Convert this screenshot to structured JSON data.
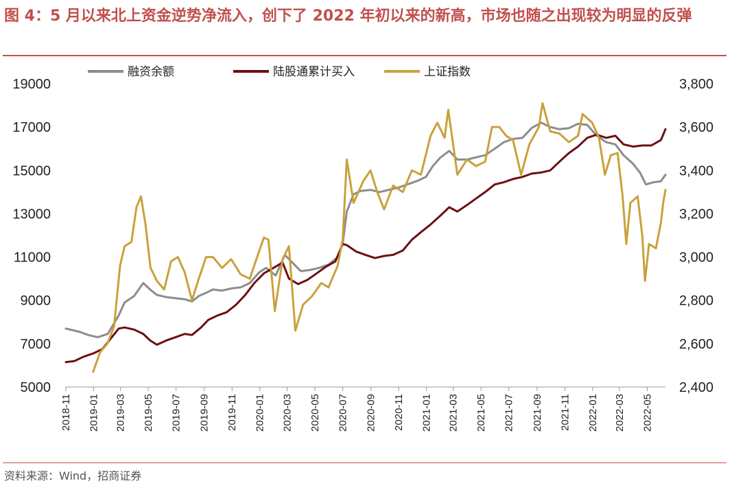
{
  "figure": {
    "title": "图 4：5 月以来北上资金逆势净流入，创下了 2022 年初以来的新高，市场也随之出现较为明显的反弹",
    "source": "资料来源：Wind，招商证券"
  },
  "colors": {
    "margin_financing": "#8c8c8c",
    "northbound": "#6b0f12",
    "sse_index": "#c9a13b",
    "accent": "#c0504d"
  },
  "chart_data": {
    "type": "line",
    "title": "图 4：5 月以来北上资金逆势净流入，创下了 2022 年初以来的新高，市场也随之出现较为明显的反弹",
    "legend_position": "top",
    "grid": false,
    "x_tick_labels": [
      "2018-11",
      "2019-01",
      "2019-03",
      "2019-05",
      "2019-07",
      "2019-09",
      "2019-11",
      "2020-01",
      "2020-03",
      "2020-05",
      "2020-07",
      "2020-09",
      "2020-11",
      "2021-01",
      "2021-03",
      "2021-05",
      "2021-07",
      "2021-09",
      "2021-11",
      "2022-01",
      "2022-03",
      "2022-05"
    ],
    "xlim": [
      "2018-11-01",
      "2022-06-10"
    ],
    "y_left": {
      "ylim": [
        5000,
        19000
      ],
      "ticks": [
        "5000",
        "7000",
        "9000",
        "11000",
        "13000",
        "15000",
        "17000",
        "19000"
      ]
    },
    "y_right": {
      "ylim": [
        2400,
        3800
      ],
      "ticks": [
        "2,400",
        "2,600",
        "2,800",
        "3,000",
        "3,200",
        "3,400",
        "3,600",
        "3,800"
      ]
    },
    "series": [
      {
        "name": "融资余额",
        "axis": "left",
        "color": "#8c8c8c",
        "points": [
          [
            "2018-11-01",
            7700
          ],
          [
            "2018-12-01",
            7550
          ],
          [
            "2018-12-20",
            7400
          ],
          [
            "2019-01-10",
            7300
          ],
          [
            "2019-02-01",
            7450
          ],
          [
            "2019-02-25",
            8300
          ],
          [
            "2019-03-10",
            8900
          ],
          [
            "2019-03-31",
            9200
          ],
          [
            "2019-04-20",
            9800
          ],
          [
            "2019-05-05",
            9500
          ],
          [
            "2019-05-20",
            9250
          ],
          [
            "2019-06-10",
            9150
          ],
          [
            "2019-06-30",
            9100
          ],
          [
            "2019-07-20",
            9050
          ],
          [
            "2019-08-05",
            8950
          ],
          [
            "2019-08-20",
            9200
          ],
          [
            "2019-09-05",
            9350
          ],
          [
            "2019-09-20",
            9500
          ],
          [
            "2019-10-10",
            9450
          ],
          [
            "2019-10-30",
            9550
          ],
          [
            "2019-11-20",
            9600
          ],
          [
            "2019-12-10",
            9800
          ],
          [
            "2019-12-31",
            10300
          ],
          [
            "2020-01-15",
            10500
          ],
          [
            "2020-02-05",
            10150
          ],
          [
            "2020-02-25",
            11100
          ],
          [
            "2020-03-10",
            10800
          ],
          [
            "2020-03-31",
            10350
          ],
          [
            "2020-04-20",
            10400
          ],
          [
            "2020-05-10",
            10500
          ],
          [
            "2020-05-31",
            10650
          ],
          [
            "2020-06-20",
            11000
          ],
          [
            "2020-07-01",
            11600
          ],
          [
            "2020-07-10",
            13100
          ],
          [
            "2020-07-25",
            13900
          ],
          [
            "2020-08-10",
            14050
          ],
          [
            "2020-08-31",
            14100
          ],
          [
            "2020-09-20",
            14000
          ],
          [
            "2020-10-10",
            14100
          ],
          [
            "2020-10-31",
            14200
          ],
          [
            "2020-11-20",
            14350
          ],
          [
            "2020-12-10",
            14500
          ],
          [
            "2020-12-31",
            14700
          ],
          [
            "2021-01-15",
            15200
          ],
          [
            "2021-02-01",
            15600
          ],
          [
            "2021-02-20",
            15900
          ],
          [
            "2021-03-10",
            15500
          ],
          [
            "2021-03-31",
            15500
          ],
          [
            "2021-04-20",
            15600
          ],
          [
            "2021-05-10",
            15700
          ],
          [
            "2021-05-31",
            16000
          ],
          [
            "2021-06-20",
            16300
          ],
          [
            "2021-07-10",
            16450
          ],
          [
            "2021-07-31",
            16500
          ],
          [
            "2021-08-20",
            16950
          ],
          [
            "2021-09-10",
            17200
          ],
          [
            "2021-09-30",
            17000
          ],
          [
            "2021-10-20",
            16900
          ],
          [
            "2021-11-10",
            16950
          ],
          [
            "2021-11-30",
            17150
          ],
          [
            "2021-12-20",
            17100
          ],
          [
            "2022-01-10",
            16600
          ],
          [
            "2022-01-31",
            16300
          ],
          [
            "2022-02-20",
            16200
          ],
          [
            "2022-03-10",
            15700
          ],
          [
            "2022-03-31",
            15300
          ],
          [
            "2022-04-15",
            14900
          ],
          [
            "2022-04-28",
            14350
          ],
          [
            "2022-05-15",
            14450
          ],
          [
            "2022-05-31",
            14500
          ],
          [
            "2022-06-10",
            14800
          ]
        ]
      },
      {
        "name": "陆股通累计买入",
        "axis": "left",
        "color": "#6b0f12",
        "points": [
          [
            "2018-11-01",
            6150
          ],
          [
            "2018-11-20",
            6200
          ],
          [
            "2018-12-10",
            6400
          ],
          [
            "2018-12-31",
            6550
          ],
          [
            "2019-01-20",
            6750
          ],
          [
            "2019-02-10",
            7300
          ],
          [
            "2019-02-25",
            7700
          ],
          [
            "2019-03-10",
            7750
          ],
          [
            "2019-03-31",
            7650
          ],
          [
            "2019-04-20",
            7450
          ],
          [
            "2019-05-05",
            7150
          ],
          [
            "2019-05-20",
            6950
          ],
          [
            "2019-06-10",
            7150
          ],
          [
            "2019-06-30",
            7300
          ],
          [
            "2019-07-20",
            7450
          ],
          [
            "2019-08-05",
            7400
          ],
          [
            "2019-08-25",
            7750
          ],
          [
            "2019-09-10",
            8100
          ],
          [
            "2019-09-30",
            8300
          ],
          [
            "2019-10-20",
            8450
          ],
          [
            "2019-11-10",
            8800
          ],
          [
            "2019-11-30",
            9250
          ],
          [
            "2019-12-20",
            9800
          ],
          [
            "2020-01-10",
            10250
          ],
          [
            "2020-01-31",
            10500
          ],
          [
            "2020-02-20",
            10750
          ],
          [
            "2020-03-05",
            10000
          ],
          [
            "2020-03-25",
            9750
          ],
          [
            "2020-04-15",
            9950
          ],
          [
            "2020-05-05",
            10250
          ],
          [
            "2020-05-25",
            10550
          ],
          [
            "2020-06-15",
            10800
          ],
          [
            "2020-07-01",
            11600
          ],
          [
            "2020-07-10",
            11550
          ],
          [
            "2020-07-31",
            11250
          ],
          [
            "2020-08-20",
            11100
          ],
          [
            "2020-09-10",
            10950
          ],
          [
            "2020-09-30",
            11050
          ],
          [
            "2020-10-20",
            11100
          ],
          [
            "2020-11-10",
            11300
          ],
          [
            "2020-11-30",
            11800
          ],
          [
            "2020-12-20",
            12150
          ],
          [
            "2021-01-10",
            12500
          ],
          [
            "2021-01-31",
            12900
          ],
          [
            "2021-02-20",
            13300
          ],
          [
            "2021-03-10",
            13100
          ],
          [
            "2021-03-31",
            13400
          ],
          [
            "2021-04-20",
            13700
          ],
          [
            "2021-05-10",
            14000
          ],
          [
            "2021-05-31",
            14350
          ],
          [
            "2021-06-20",
            14450
          ],
          [
            "2021-07-10",
            14600
          ],
          [
            "2021-07-31",
            14700
          ],
          [
            "2021-08-20",
            14850
          ],
          [
            "2021-09-10",
            14900
          ],
          [
            "2021-09-30",
            15000
          ],
          [
            "2021-10-20",
            15400
          ],
          [
            "2021-11-10",
            15800
          ],
          [
            "2021-11-30",
            16100
          ],
          [
            "2021-12-20",
            16500
          ],
          [
            "2022-01-10",
            16650
          ],
          [
            "2022-01-31",
            16500
          ],
          [
            "2022-02-20",
            16600
          ],
          [
            "2022-03-10",
            16200
          ],
          [
            "2022-03-31",
            16100
          ],
          [
            "2022-04-20",
            16150
          ],
          [
            "2022-05-10",
            16150
          ],
          [
            "2022-05-31",
            16400
          ],
          [
            "2022-06-10",
            16900
          ]
        ]
      },
      {
        "name": "上证指数",
        "axis": "right",
        "color": "#c9a13b",
        "points": [
          [
            "2018-12-31",
            2470
          ],
          [
            "2019-01-05",
            2500
          ],
          [
            "2019-01-15",
            2560
          ],
          [
            "2019-01-31",
            2600
          ],
          [
            "2019-02-15",
            2680
          ],
          [
            "2019-02-28",
            2960
          ],
          [
            "2019-03-10",
            3050
          ],
          [
            "2019-03-25",
            3070
          ],
          [
            "2019-04-05",
            3230
          ],
          [
            "2019-04-15",
            3280
          ],
          [
            "2019-04-25",
            3150
          ],
          [
            "2019-05-06",
            2950
          ],
          [
            "2019-05-20",
            2890
          ],
          [
            "2019-06-05",
            2850
          ],
          [
            "2019-06-20",
            2980
          ],
          [
            "2019-07-05",
            3000
          ],
          [
            "2019-07-20",
            2930
          ],
          [
            "2019-08-05",
            2800
          ],
          [
            "2019-08-20",
            2900
          ],
          [
            "2019-09-05",
            3000
          ],
          [
            "2019-09-20",
            3000
          ],
          [
            "2019-10-10",
            2950
          ],
          [
            "2019-10-30",
            2990
          ],
          [
            "2019-11-20",
            2920
          ],
          [
            "2019-12-10",
            2900
          ],
          [
            "2019-12-31",
            3030
          ],
          [
            "2020-01-10",
            3090
          ],
          [
            "2020-01-20",
            3080
          ],
          [
            "2020-02-03",
            2750
          ],
          [
            "2020-02-20",
            2990
          ],
          [
            "2020-03-05",
            3050
          ],
          [
            "2020-03-19",
            2660
          ],
          [
            "2020-04-05",
            2780
          ],
          [
            "2020-04-25",
            2820
          ],
          [
            "2020-05-15",
            2880
          ],
          [
            "2020-05-31",
            2860
          ],
          [
            "2020-06-20",
            2960
          ],
          [
            "2020-07-01",
            3080
          ],
          [
            "2020-07-10",
            3450
          ],
          [
            "2020-07-25",
            3250
          ],
          [
            "2020-08-15",
            3350
          ],
          [
            "2020-08-31",
            3400
          ],
          [
            "2020-09-15",
            3300
          ],
          [
            "2020-09-30",
            3220
          ],
          [
            "2020-10-20",
            3330
          ],
          [
            "2020-11-10",
            3300
          ],
          [
            "2020-11-30",
            3400
          ],
          [
            "2020-12-20",
            3380
          ],
          [
            "2021-01-10",
            3560
          ],
          [
            "2021-01-25",
            3620
          ],
          [
            "2021-02-10",
            3550
          ],
          [
            "2021-02-18",
            3680
          ],
          [
            "2021-03-10",
            3380
          ],
          [
            "2021-03-31",
            3450
          ],
          [
            "2021-04-20",
            3420
          ],
          [
            "2021-05-10",
            3440
          ],
          [
            "2021-05-25",
            3600
          ],
          [
            "2021-06-10",
            3600
          ],
          [
            "2021-06-25",
            3560
          ],
          [
            "2021-07-10",
            3540
          ],
          [
            "2021-07-28",
            3380
          ],
          [
            "2021-08-15",
            3520
          ],
          [
            "2021-09-05",
            3600
          ],
          [
            "2021-09-13",
            3710
          ],
          [
            "2021-09-30",
            3580
          ],
          [
            "2021-10-20",
            3570
          ],
          [
            "2021-11-10",
            3530
          ],
          [
            "2021-11-30",
            3560
          ],
          [
            "2021-12-10",
            3660
          ],
          [
            "2021-12-31",
            3620
          ],
          [
            "2022-01-15",
            3550
          ],
          [
            "2022-01-28",
            3380
          ],
          [
            "2022-02-10",
            3470
          ],
          [
            "2022-02-25",
            3480
          ],
          [
            "2022-03-08",
            3280
          ],
          [
            "2022-03-16",
            3060
          ],
          [
            "2022-03-25",
            3250
          ],
          [
            "2022-04-10",
            3280
          ],
          [
            "2022-04-20",
            3100
          ],
          [
            "2022-04-26",
            2890
          ],
          [
            "2022-05-05",
            3060
          ],
          [
            "2022-05-20",
            3040
          ],
          [
            "2022-05-31",
            3160
          ],
          [
            "2022-06-05",
            3250
          ],
          [
            "2022-06-10",
            3310
          ]
        ]
      }
    ]
  }
}
